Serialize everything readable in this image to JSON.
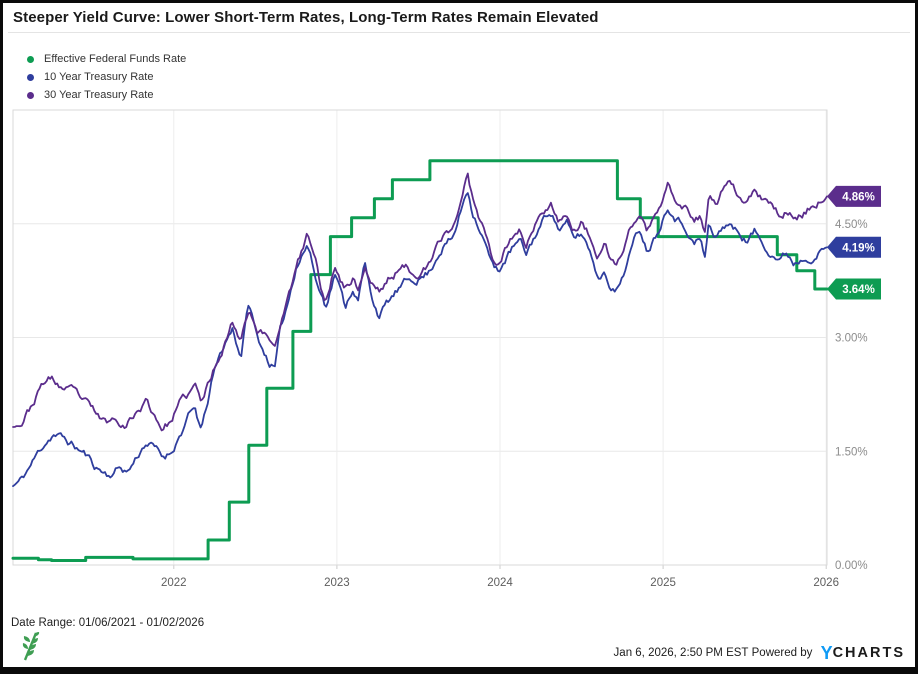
{
  "header": {
    "title": "Steeper Yield Curve: Lower Short-Term Rates, Long-Term Rates Remain Elevated"
  },
  "footer": {
    "date_range_label": "Date Range: 01/06/2021 - 01/02/2026",
    "timestamp": "Jan 6, 2026, 2:50 PM EST",
    "powered_by": " Powered by ",
    "brand_y": "Y",
    "brand_rest": "CHARTS",
    "brand_y_color": "#0f9af5",
    "leaf_color": "#3f9e53"
  },
  "chart_data": {
    "type": "line",
    "title": "Steeper Yield Curve: Lower Short-Term Rates, Long-Term Rates Remain Elevated",
    "legend_position": "top-left",
    "grid": true,
    "x_axis": {
      "range": [
        2021.014,
        2026.005
      ],
      "ticks": [
        {
          "label": "2022",
          "t": 2022
        },
        {
          "label": "2023",
          "t": 2023
        },
        {
          "label": "2024",
          "t": 2024
        },
        {
          "label": "2025",
          "t": 2025
        },
        {
          "label": "2026",
          "t": 2026
        }
      ]
    },
    "y_axis": {
      "unit": "%",
      "range": [
        0,
        6
      ],
      "ticks": [
        {
          "label": "0.00%",
          "v": 0
        },
        {
          "label": "1.50%",
          "v": 1.5
        },
        {
          "label": "3.00%",
          "v": 3
        },
        {
          "label": "4.50%",
          "v": 4.5
        }
      ]
    },
    "series": [
      {
        "name": "Effective Federal Funds Rate",
        "slug": "effective-federal-funds-rate",
        "color": "#0d9c52",
        "style": "step",
        "width": 3,
        "end_value": 3.64,
        "end_label": "3.64%",
        "points": [
          [
            2021.014,
            0.09
          ],
          [
            2021.17,
            0.07
          ],
          [
            2021.25,
            0.06
          ],
          [
            2021.46,
            0.1
          ],
          [
            2021.75,
            0.08
          ],
          [
            2022.0,
            0.08
          ],
          [
            2022.21,
            0.33
          ],
          [
            2022.34,
            0.83
          ],
          [
            2022.46,
            1.58
          ],
          [
            2022.57,
            2.33
          ],
          [
            2022.73,
            3.08
          ],
          [
            2022.84,
            3.83
          ],
          [
            2022.96,
            4.33
          ],
          [
            2023.09,
            4.58
          ],
          [
            2023.23,
            4.83
          ],
          [
            2023.34,
            5.08
          ],
          [
            2023.57,
            5.33
          ],
          [
            2024.72,
            4.83
          ],
          [
            2024.86,
            4.58
          ],
          [
            2024.97,
            4.33
          ],
          [
            2025.7,
            4.09
          ],
          [
            2025.82,
            3.88
          ],
          [
            2025.93,
            3.64
          ],
          [
            2026.005,
            3.64
          ]
        ]
      },
      {
        "name": "10 Year Treasury Rate",
        "slug": "10-year-treasury-rate",
        "color": "#2f3e9e",
        "style": "line",
        "width": 1.8,
        "seed": 11,
        "end_value": 4.19,
        "end_label": "4.19%",
        "points": [
          [
            2021.014,
            1.04
          ],
          [
            2021.07,
            1.13
          ],
          [
            2021.13,
            1.34
          ],
          [
            2021.21,
            1.62
          ],
          [
            2021.26,
            1.74
          ],
          [
            2021.32,
            1.67
          ],
          [
            2021.38,
            1.58
          ],
          [
            2021.45,
            1.47
          ],
          [
            2021.52,
            1.3
          ],
          [
            2021.6,
            1.19
          ],
          [
            2021.67,
            1.29
          ],
          [
            2021.72,
            1.24
          ],
          [
            2021.79,
            1.49
          ],
          [
            2021.83,
            1.63
          ],
          [
            2021.88,
            1.55
          ],
          [
            2021.93,
            1.41
          ],
          [
            2021.98,
            1.49
          ],
          [
            2022.03,
            1.7
          ],
          [
            2022.09,
            1.95
          ],
          [
            2022.13,
            2.04
          ],
          [
            2022.17,
            1.75
          ],
          [
            2022.24,
            2.48
          ],
          [
            2022.31,
            2.9
          ],
          [
            2022.36,
            3.12
          ],
          [
            2022.41,
            2.76
          ],
          [
            2022.46,
            3.47
          ],
          [
            2022.51,
            3.0
          ],
          [
            2022.58,
            2.7
          ],
          [
            2022.62,
            2.6
          ],
          [
            2022.65,
            3.03
          ],
          [
            2022.71,
            3.55
          ],
          [
            2022.75,
            3.97
          ],
          [
            2022.82,
            4.25
          ],
          [
            2022.88,
            3.7
          ],
          [
            2022.93,
            3.44
          ],
          [
            2022.99,
            3.88
          ],
          [
            2023.05,
            3.4
          ],
          [
            2023.1,
            3.68
          ],
          [
            2023.13,
            3.5
          ],
          [
            2023.17,
            3.97
          ],
          [
            2023.21,
            3.55
          ],
          [
            2023.26,
            3.3
          ],
          [
            2023.31,
            3.45
          ],
          [
            2023.37,
            3.6
          ],
          [
            2023.42,
            3.7
          ],
          [
            2023.46,
            3.76
          ],
          [
            2023.52,
            3.81
          ],
          [
            2023.57,
            3.88
          ],
          [
            2023.62,
            4.12
          ],
          [
            2023.66,
            4.25
          ],
          [
            2023.71,
            4.3
          ],
          [
            2023.75,
            4.58
          ],
          [
            2023.8,
            4.98
          ],
          [
            2023.83,
            4.7
          ],
          [
            2023.87,
            4.5
          ],
          [
            2023.91,
            4.25
          ],
          [
            2023.96,
            3.9
          ],
          [
            2023.99,
            3.88
          ],
          [
            2024.04,
            4.05
          ],
          [
            2024.08,
            4.18
          ],
          [
            2024.12,
            4.25
          ],
          [
            2024.16,
            4.08
          ],
          [
            2024.21,
            4.32
          ],
          [
            2024.26,
            4.52
          ],
          [
            2024.31,
            4.7
          ],
          [
            2024.36,
            4.45
          ],
          [
            2024.41,
            4.5
          ],
          [
            2024.45,
            4.28
          ],
          [
            2024.5,
            4.36
          ],
          [
            2024.54,
            4.2
          ],
          [
            2024.58,
            3.98
          ],
          [
            2024.6,
            3.78
          ],
          [
            2024.64,
            3.9
          ],
          [
            2024.68,
            3.72
          ],
          [
            2024.71,
            3.62
          ],
          [
            2024.74,
            3.75
          ],
          [
            2024.79,
            4.08
          ],
          [
            2024.83,
            4.3
          ],
          [
            2024.86,
            4.44
          ],
          [
            2024.9,
            4.18
          ],
          [
            2024.93,
            4.28
          ],
          [
            2024.96,
            4.4
          ],
          [
            2024.995,
            4.58
          ],
          [
            2025.03,
            4.79
          ],
          [
            2025.07,
            4.65
          ],
          [
            2025.11,
            4.55
          ],
          [
            2025.15,
            4.45
          ],
          [
            2025.19,
            4.25
          ],
          [
            2025.23,
            4.32
          ],
          [
            2025.255,
            4.01
          ],
          [
            2025.28,
            4.49
          ],
          [
            2025.32,
            4.28
          ],
          [
            2025.36,
            4.45
          ],
          [
            2025.4,
            4.52
          ],
          [
            2025.44,
            4.42
          ],
          [
            2025.48,
            4.35
          ],
          [
            2025.52,
            4.28
          ],
          [
            2025.56,
            4.4
          ],
          [
            2025.6,
            4.28
          ],
          [
            2025.64,
            4.2
          ],
          [
            2025.68,
            4.12
          ],
          [
            2025.72,
            4.05
          ],
          [
            2025.76,
            4.12
          ],
          [
            2025.8,
            4.0
          ],
          [
            2025.84,
            4.05
          ],
          [
            2025.88,
            4.1
          ],
          [
            2025.92,
            4.12
          ],
          [
            2025.96,
            4.15
          ],
          [
            2026.005,
            4.19
          ]
        ]
      },
      {
        "name": "30 Year Treasury Rate",
        "slug": "30-year-treasury-rate",
        "color": "#5b2d8c",
        "style": "line",
        "width": 1.8,
        "seed": 23,
        "end_value": 4.86,
        "end_label": "4.86%",
        "points": [
          [
            2021.014,
            1.82
          ],
          [
            2021.06,
            1.88
          ],
          [
            2021.12,
            2.08
          ],
          [
            2021.2,
            2.4
          ],
          [
            2021.25,
            2.45
          ],
          [
            2021.31,
            2.34
          ],
          [
            2021.37,
            2.28
          ],
          [
            2021.44,
            2.16
          ],
          [
            2021.51,
            2.0
          ],
          [
            2021.58,
            1.86
          ],
          [
            2021.65,
            1.93
          ],
          [
            2021.71,
            1.88
          ],
          [
            2021.78,
            2.05
          ],
          [
            2021.83,
            2.16
          ],
          [
            2021.88,
            1.98
          ],
          [
            2021.93,
            1.82
          ],
          [
            2021.98,
            1.9
          ],
          [
            2022.03,
            2.1
          ],
          [
            2022.09,
            2.23
          ],
          [
            2022.13,
            2.35
          ],
          [
            2022.17,
            2.12
          ],
          [
            2022.24,
            2.55
          ],
          [
            2022.31,
            2.95
          ],
          [
            2022.36,
            3.22
          ],
          [
            2022.41,
            3.0
          ],
          [
            2022.46,
            3.43
          ],
          [
            2022.51,
            3.12
          ],
          [
            2022.58,
            3.0
          ],
          [
            2022.62,
            2.9
          ],
          [
            2022.65,
            3.2
          ],
          [
            2022.71,
            3.6
          ],
          [
            2022.75,
            3.88
          ],
          [
            2022.82,
            4.35
          ],
          [
            2022.88,
            3.9
          ],
          [
            2022.93,
            3.42
          ],
          [
            2022.99,
            3.97
          ],
          [
            2023.05,
            3.66
          ],
          [
            2023.1,
            3.8
          ],
          [
            2023.13,
            3.65
          ],
          [
            2023.17,
            3.94
          ],
          [
            2023.21,
            3.72
          ],
          [
            2023.26,
            3.61
          ],
          [
            2023.31,
            3.75
          ],
          [
            2023.37,
            3.88
          ],
          [
            2023.42,
            3.92
          ],
          [
            2023.46,
            3.86
          ],
          [
            2023.52,
            3.9
          ],
          [
            2023.57,
            3.95
          ],
          [
            2023.62,
            4.2
          ],
          [
            2023.66,
            4.35
          ],
          [
            2023.71,
            4.45
          ],
          [
            2023.75,
            4.73
          ],
          [
            2023.8,
            5.11
          ],
          [
            2023.83,
            4.85
          ],
          [
            2023.87,
            4.62
          ],
          [
            2023.91,
            4.4
          ],
          [
            2023.96,
            4.05
          ],
          [
            2023.99,
            4.03
          ],
          [
            2024.04,
            4.22
          ],
          [
            2024.08,
            4.35
          ],
          [
            2024.12,
            4.42
          ],
          [
            2024.16,
            4.25
          ],
          [
            2024.21,
            4.45
          ],
          [
            2024.26,
            4.63
          ],
          [
            2024.31,
            4.81
          ],
          [
            2024.36,
            4.58
          ],
          [
            2024.41,
            4.65
          ],
          [
            2024.45,
            4.42
          ],
          [
            2024.5,
            4.51
          ],
          [
            2024.54,
            4.38
          ],
          [
            2024.58,
            4.18
          ],
          [
            2024.6,
            4.06
          ],
          [
            2024.64,
            4.18
          ],
          [
            2024.68,
            4.0
          ],
          [
            2024.71,
            3.93
          ],
          [
            2024.74,
            4.06
          ],
          [
            2024.79,
            4.38
          ],
          [
            2024.83,
            4.55
          ],
          [
            2024.86,
            4.62
          ],
          [
            2024.9,
            4.4
          ],
          [
            2024.93,
            4.5
          ],
          [
            2024.96,
            4.62
          ],
          [
            2024.995,
            4.78
          ],
          [
            2025.03,
            4.98
          ],
          [
            2025.07,
            4.86
          ],
          [
            2025.11,
            4.78
          ],
          [
            2025.15,
            4.7
          ],
          [
            2025.19,
            4.52
          ],
          [
            2025.23,
            4.6
          ],
          [
            2025.255,
            4.41
          ],
          [
            2025.28,
            4.89
          ],
          [
            2025.32,
            4.72
          ],
          [
            2025.36,
            4.9
          ],
          [
            2025.4,
            4.97
          ],
          [
            2025.44,
            4.88
          ],
          [
            2025.48,
            4.8
          ],
          [
            2025.52,
            4.76
          ],
          [
            2025.56,
            4.9
          ],
          [
            2025.6,
            4.82
          ],
          [
            2025.64,
            4.75
          ],
          [
            2025.68,
            4.66
          ],
          [
            2025.72,
            4.6
          ],
          [
            2025.76,
            4.68
          ],
          [
            2025.8,
            4.58
          ],
          [
            2025.84,
            4.62
          ],
          [
            2025.88,
            4.68
          ],
          [
            2025.92,
            4.74
          ],
          [
            2025.96,
            4.8
          ],
          [
            2026.005,
            4.86
          ]
        ]
      }
    ]
  }
}
